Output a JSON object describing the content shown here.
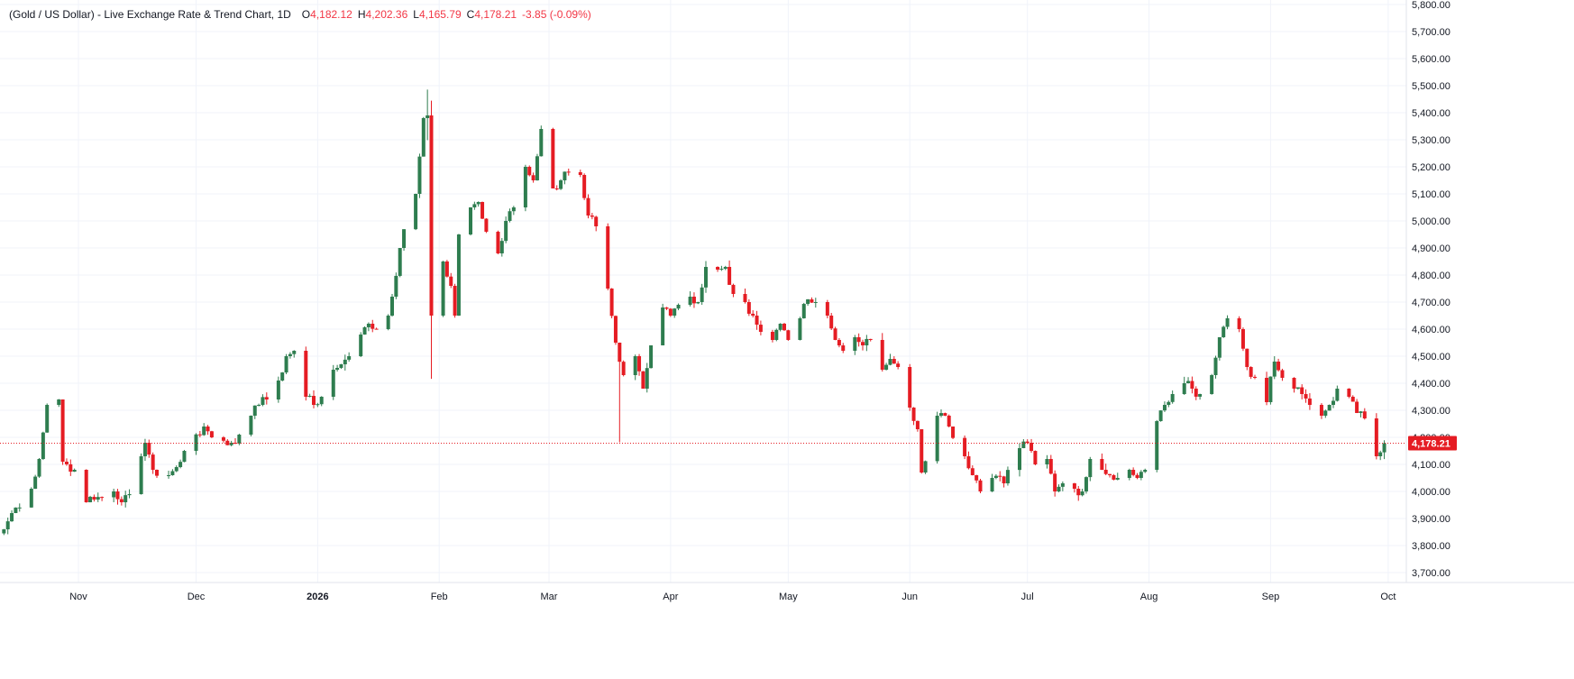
{
  "header": {
    "symbol": "(Gold / US Dollar) - Live Exchange Rate & Trend Chart, 1D",
    "open_label": "O",
    "open": "4,182.12",
    "high_label": "H",
    "high": "4,202.36",
    "low_label": "L",
    "low": "4,165.79",
    "close_label": "C",
    "close": "4,178.21",
    "change": "-3.85 (-0.09%)"
  },
  "colors": {
    "up": "#2e7d4f",
    "down": "#e51c23",
    "last_price": "#e51c23",
    "grid": "#f0f3fa",
    "axis_text": "#131722"
  },
  "chart_data": {
    "type": "candlestick",
    "title": "",
    "x_axis": {
      "labels": [
        "Nov",
        "Dec",
        "2026",
        "Feb",
        "Mar",
        "Apr",
        "May",
        "Jun",
        "Jul",
        "Aug",
        "Sep",
        "Oct"
      ],
      "bold": [
        "2026"
      ]
    },
    "y_axis": {
      "position": "right",
      "ticks": [
        "5,800.00",
        "5,700.00",
        "5,600.00",
        "5,500.00",
        "5,400.00",
        "5,300.00",
        "5,200.00",
        "5,100.00",
        "5,000.00",
        "4,900.00",
        "4,800.00",
        "4,700.00",
        "4,600.00",
        "4,500.00",
        "4,400.00",
        "4,300.00",
        "4,200.00",
        "4,100.00",
        "4,000.00",
        "3,900.00",
        "3,800.00",
        "3,700.00"
      ],
      "range": [
        3650,
        5810
      ]
    },
    "last_price": 4178.21,
    "last_price_label": "4,178.21",
    "grid": true,
    "anchors": [
      [
        "2025-10-13",
        3860
      ],
      [
        "2025-10-15",
        3920
      ],
      [
        "2025-10-20",
        4010
      ],
      [
        "2025-10-22",
        4120
      ],
      [
        "2025-10-24",
        4320
      ],
      [
        "2025-10-27",
        4340
      ],
      [
        "2025-10-28",
        4110
      ],
      [
        "2025-10-31",
        4080
      ],
      [
        "2025-11-03",
        3960
      ],
      [
        "2025-11-05",
        3970
      ],
      [
        "2025-11-10",
        4000
      ],
      [
        "2025-11-12",
        3960
      ],
      [
        "2025-11-14",
        3990
      ],
      [
        "2025-11-17",
        4130
      ],
      [
        "2025-11-18",
        4180
      ],
      [
        "2025-11-20",
        4080
      ],
      [
        "2025-11-24",
        4060
      ],
      [
        "2025-11-26",
        4090
      ],
      [
        "2025-11-28",
        4150
      ],
      [
        "2025-12-03",
        4240
      ],
      [
        "2025-12-05",
        4200
      ],
      [
        "2025-12-10",
        4180
      ],
      [
        "2025-12-12",
        4210
      ],
      [
        "2025-12-15",
        4280
      ],
      [
        "2025-12-17",
        4320
      ],
      [
        "2025-12-19",
        4340
      ],
      [
        "2025-12-22",
        4410
      ],
      [
        "2025-12-24",
        4500
      ],
      [
        "2025-12-26",
        4520
      ],
      [
        "2025-12-29",
        4350
      ],
      [
        "2025-12-31",
        4320
      ],
      [
        "2026-01-02",
        4350
      ],
      [
        "2026-01-05",
        4450
      ],
      [
        "2026-01-07",
        4470
      ],
      [
        "2026-01-09",
        4500
      ],
      [
        "2026-01-12",
        4580
      ],
      [
        "2026-01-14",
        4620
      ],
      [
        "2026-01-16",
        4600
      ],
      [
        "2026-01-19",
        4650
      ],
      [
        "2026-01-20",
        4720
      ],
      [
        "2026-01-22",
        4900
      ],
      [
        "2026-01-26",
        5100
      ],
      [
        "2026-01-28",
        5380
      ],
      [
        "2026-01-29",
        5390
      ],
      [
        "2026-01-30",
        4650
      ],
      [
        "2026-02-02",
        4850
      ],
      [
        "2026-02-04",
        4760
      ],
      [
        "2026-02-05",
        4650
      ],
      [
        "2026-02-06",
        4950
      ],
      [
        "2026-02-09",
        5050
      ],
      [
        "2026-02-11",
        5070
      ],
      [
        "2026-02-13",
        4960
      ],
      [
        "2026-02-16",
        4880
      ],
      [
        "2026-02-18",
        5000
      ],
      [
        "2026-02-20",
        5050
      ],
      [
        "2026-02-23",
        5200
      ],
      [
        "2026-02-25",
        5150
      ],
      [
        "2026-02-27",
        5340
      ],
      [
        "2026-03-02",
        5120
      ],
      [
        "2026-03-04",
        5150
      ],
      [
        "2026-03-06",
        5180
      ],
      [
        "2026-03-09",
        5170
      ],
      [
        "2026-03-11",
        5020
      ],
      [
        "2026-03-13",
        4980
      ],
      [
        "2026-03-16",
        4750
      ],
      [
        "2026-03-18",
        4550
      ],
      [
        "2026-03-20",
        4430
      ],
      [
        "2026-03-23",
        4500
      ],
      [
        "2026-03-25",
        4380
      ],
      [
        "2026-03-27",
        4540
      ],
      [
        "2026-03-30",
        4680
      ],
      [
        "2026-04-01",
        4650
      ],
      [
        "2026-04-03",
        4690
      ],
      [
        "2026-04-06",
        4720
      ],
      [
        "2026-04-08",
        4700
      ],
      [
        "2026-04-10",
        4830
      ],
      [
        "2026-04-13",
        4820
      ],
      [
        "2026-04-15",
        4830
      ],
      [
        "2026-04-17",
        4730
      ],
      [
        "2026-04-20",
        4700
      ],
      [
        "2026-04-22",
        4650
      ],
      [
        "2026-04-24",
        4590
      ],
      [
        "2026-04-27",
        4560
      ],
      [
        "2026-04-29",
        4620
      ],
      [
        "2026-05-01",
        4560
      ],
      [
        "2026-05-04",
        4640
      ],
      [
        "2026-05-06",
        4710
      ],
      [
        "2026-05-08",
        4700
      ],
      [
        "2026-05-11",
        4650
      ],
      [
        "2026-05-13",
        4560
      ],
      [
        "2026-05-15",
        4520
      ],
      [
        "2026-05-18",
        4570
      ],
      [
        "2026-05-20",
        4540
      ],
      [
        "2026-05-22",
        4560
      ],
      [
        "2026-05-25",
        4450
      ],
      [
        "2026-05-27",
        4490
      ],
      [
        "2026-05-29",
        4460
      ],
      [
        "2026-06-01",
        4310
      ],
      [
        "2026-06-03",
        4230
      ],
      [
        "2026-06-04",
        4070
      ],
      [
        "2026-06-08",
        4280
      ],
      [
        "2026-06-10",
        4280
      ],
      [
        "2026-06-11",
        4240
      ],
      [
        "2026-06-15",
        4130
      ],
      [
        "2026-06-17",
        4060
      ],
      [
        "2026-06-19",
        4000
      ],
      [
        "2026-06-22",
        4050
      ],
      [
        "2026-06-25",
        4030
      ],
      [
        "2026-06-29",
        4160
      ],
      [
        "2026-07-01",
        4180
      ],
      [
        "2026-07-03",
        4100
      ],
      [
        "2026-07-06",
        4120
      ],
      [
        "2026-07-08",
        4000
      ],
      [
        "2026-07-10",
        4030
      ],
      [
        "2026-07-13",
        4010
      ],
      [
        "2026-07-15",
        4000
      ],
      [
        "2026-07-17",
        4120
      ],
      [
        "2026-07-20",
        4080
      ],
      [
        "2026-07-22",
        4060
      ],
      [
        "2026-07-24",
        4050
      ],
      [
        "2026-07-27",
        4080
      ],
      [
        "2026-07-29",
        4050
      ],
      [
        "2026-07-31",
        4080
      ],
      [
        "2026-08-03",
        4260
      ],
      [
        "2026-08-05",
        4320
      ],
      [
        "2026-08-07",
        4360
      ],
      [
        "2026-08-10",
        4400
      ],
      [
        "2026-08-12",
        4380
      ],
      [
        "2026-08-14",
        4360
      ],
      [
        "2026-08-17",
        4430
      ],
      [
        "2026-08-19",
        4570
      ],
      [
        "2026-08-21",
        4640
      ],
      [
        "2026-08-24",
        4600
      ],
      [
        "2026-08-26",
        4460
      ],
      [
        "2026-08-28",
        4420
      ],
      [
        "2026-08-31",
        4330
      ],
      [
        "2026-09-02",
        4480
      ],
      [
        "2026-09-04",
        4420
      ],
      [
        "2026-09-07",
        4380
      ],
      [
        "2026-09-09",
        4360
      ],
      [
        "2026-09-11",
        4320
      ],
      [
        "2026-09-14",
        4280
      ],
      [
        "2026-09-16",
        4320
      ],
      [
        "2026-09-18",
        4380
      ],
      [
        "2026-09-21",
        4350
      ],
      [
        "2026-09-23",
        4290
      ],
      [
        "2026-09-25",
        4270
      ],
      [
        "2026-09-28",
        4130
      ],
      [
        "2026-09-30",
        4178
      ]
    ]
  }
}
